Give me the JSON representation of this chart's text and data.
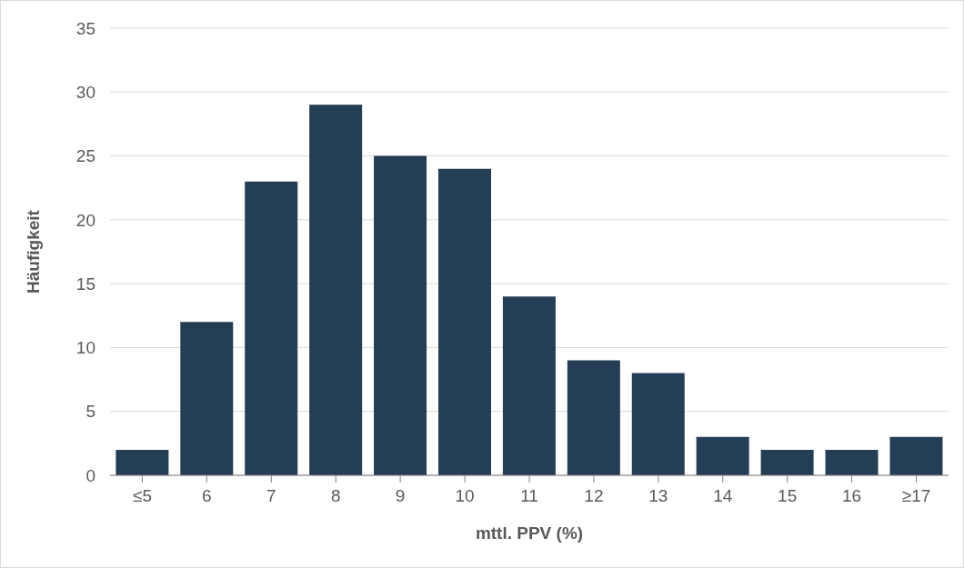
{
  "chart_data": {
    "type": "bar",
    "xlabel": "mttl. PPV (%)",
    "ylabel": "Häufigkeit",
    "categories": [
      "≤5",
      "6",
      "7",
      "8",
      "9",
      "10",
      "11",
      "12",
      "13",
      "14",
      "15",
      "16",
      "≥17"
    ],
    "values": [
      2,
      12,
      23,
      29,
      25,
      24,
      14,
      9,
      8,
      3,
      2,
      2,
      3
    ],
    "color": "#243e55",
    "ylim": [
      0,
      35
    ],
    "yticks": [
      0,
      5,
      10,
      15,
      20,
      25,
      30,
      35
    ],
    "grid": "y"
  }
}
